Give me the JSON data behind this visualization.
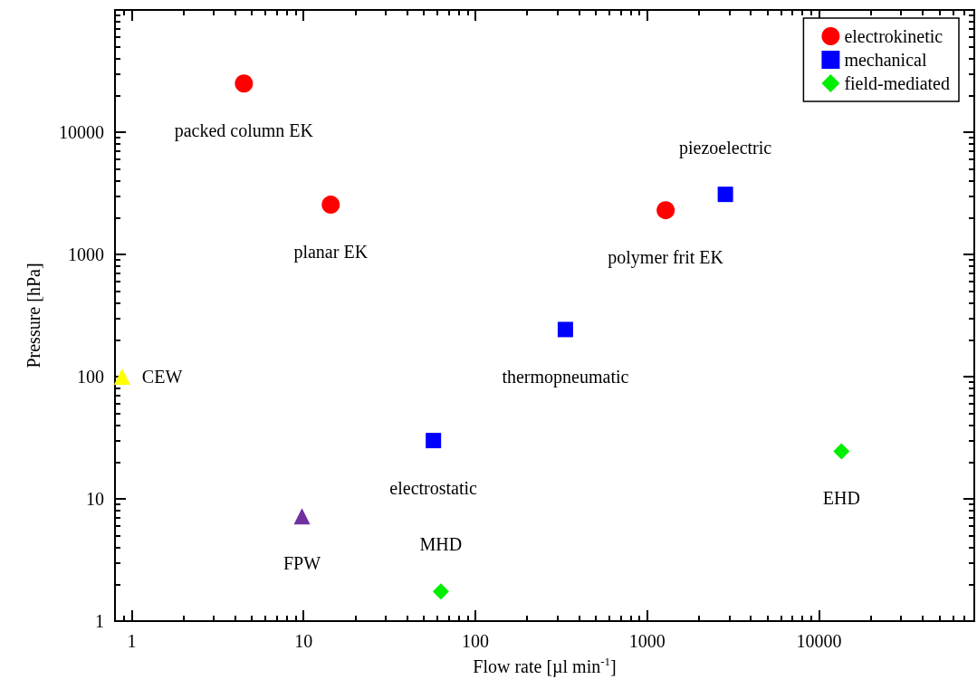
{
  "chart_data": {
    "type": "scatter",
    "xlabel": "Flow rate [µl min$^{-1}$]",
    "ylabel": "Pressure [hPa]",
    "log": "xy",
    "grid": false,
    "legend": "top right",
    "xlim": [
      0.8,
      80000
    ],
    "ylim": [
      1,
      100000
    ],
    "xticks": [
      {
        "value": 0.8,
        "label": null
      },
      {
        "value": 0.9,
        "label": null
      },
      1,
      {
        "value": 2,
        "label": null
      },
      {
        "value": 3,
        "label": null
      },
      {
        "value": 4,
        "label": null
      },
      {
        "value": 5,
        "label": null
      },
      {
        "value": 6,
        "label": null
      },
      {
        "value": 7,
        "label": null
      },
      {
        "value": 8,
        "label": null
      },
      {
        "value": 9,
        "label": null
      },
      10,
      {
        "value": 20,
        "label": null
      },
      {
        "value": 30,
        "label": null
      },
      {
        "value": 40,
        "label": null
      },
      {
        "value": 50,
        "label": null
      },
      {
        "value": 60,
        "label": null
      },
      {
        "value": 70,
        "label": null
      },
      {
        "value": 80,
        "label": null
      },
      {
        "value": 90,
        "label": null
      },
      100,
      {
        "value": 200,
        "label": null
      },
      {
        "value": 300,
        "label": null
      },
      {
        "value": 400,
        "label": null
      },
      {
        "value": 500,
        "label": null
      },
      {
        "value": 600,
        "label": null
      },
      {
        "value": 700,
        "label": null
      },
      {
        "value": 800,
        "label": null
      },
      {
        "value": 900,
        "label": null
      },
      1000,
      {
        "value": 2000,
        "label": null
      },
      {
        "value": 3000,
        "label": null
      },
      {
        "value": 4000,
        "label": null
      },
      {
        "value": 5000,
        "label": null
      },
      {
        "value": 6000,
        "label": null
      },
      {
        "value": 7000,
        "label": null
      },
      {
        "value": 8000,
        "label": null
      },
      {
        "value": 9000,
        "label": null
      },
      10000,
      {
        "value": 20000,
        "label": null
      },
      {
        "value": 30000,
        "label": null
      },
      {
        "value": 40000,
        "label": null
      },
      {
        "value": 50000,
        "label": null
      },
      {
        "value": 60000,
        "label": null
      },
      {
        "value": 70000,
        "label": null
      },
      {
        "value": 80000,
        "label": null
      }
    ],
    "yticks": [
      1,
      {
        "value": 2,
        "label": null
      },
      {
        "value": 3,
        "label": null
      },
      {
        "value": 4,
        "label": null
      },
      {
        "value": 5,
        "label": null
      },
      {
        "value": 6,
        "label": null
      },
      {
        "value": 7,
        "label": null
      },
      {
        "value": 8,
        "label": null
      },
      {
        "value": 9,
        "label": null
      },
      10,
      {
        "value": 20,
        "label": null
      },
      {
        "value": 30,
        "label": null
      },
      {
        "value": 40,
        "label": null
      },
      {
        "value": 50,
        "label": null
      },
      {
        "value": 60,
        "label": null
      },
      {
        "value": 70,
        "label": null
      },
      {
        "value": 80,
        "label": null
      },
      {
        "value": 90,
        "label": null
      },
      100,
      {
        "value": 200,
        "label": null
      },
      {
        "value": 300,
        "label": null
      },
      {
        "value": 400,
        "label": null
      },
      {
        "value": 500,
        "label": null
      },
      {
        "value": 600,
        "label": null
      },
      {
        "value": 700,
        "label": null
      },
      {
        "value": 800,
        "label": null
      },
      {
        "value": 900,
        "label": null
      },
      1000,
      {
        "value": 2000,
        "label": null
      },
      {
        "value": 3000,
        "label": null
      },
      {
        "value": 4000,
        "label": null
      },
      {
        "value": 5000,
        "label": null
      },
      {
        "value": 6000,
        "label": null
      },
      {
        "value": 7000,
        "label": null
      },
      {
        "value": 8000,
        "label": null
      },
      {
        "value": 9000,
        "label": null
      },
      10000,
      {
        "value": 20000,
        "label": null
      },
      {
        "value": 30000,
        "label": null
      },
      {
        "value": 40000,
        "label": null
      },
      {
        "value": 50000,
        "label": null
      },
      {
        "value": 60000,
        "label": null
      },
      {
        "value": 70000,
        "label": null
      },
      {
        "value": 80000,
        "label": null
      },
      {
        "value": 90000,
        "label": null
      },
      {
        "value": 100000,
        "label": null
      }
    ],
    "series": [
      {
        "name": "electrokinetic",
        "color": "#ff0000",
        "marker": "circle",
        "x": [
          4.5,
          14.4,
          1280
        ],
        "values": [
          25000,
          2550,
          2300
        ]
      },
      {
        "name": "mechanical",
        "color": "#0000ff",
        "marker": "square",
        "x": [
          2850,
          334,
          57
        ],
        "values": [
          3100,
          243,
          30
        ]
      },
      {
        "name": "field-mediated",
        "color": "#00ee00",
        "marker": "diamond",
        "x": [
          63,
          13500
        ],
        "values": [
          1.75,
          24.5
        ]
      },
      {
        "color": "#7030a0",
        "marker": "triangle",
        "x": [
          9.8
        ],
        "values": [
          7.2
        ]
      },
      {
        "color": "#ffff00",
        "marker": "triangle",
        "x": [
          0.88
        ],
        "values": [
          100
        ]
      }
    ],
    "annotations": [
      {
        "text": "packed column EK",
        "x": 4.5,
        "y": 25000
      },
      {
        "text": "planar EK",
        "x": 14.4,
        "y": 2550
      },
      {
        "text": "polymer frit EK",
        "x": 1280,
        "y": 2300
      },
      {
        "text": "piezoelectric",
        "x": 2850,
        "y": 3100
      },
      {
        "text": "thermopneumatic",
        "x": 334,
        "y": 243
      },
      {
        "text": "electrostatic",
        "x": 57,
        "y": 30
      },
      {
        "text": "MHD",
        "x": 63,
        "y": 1.75
      },
      {
        "text": "FPW",
        "x": 9.8,
        "y": 7.2
      },
      {
        "text": "EHD",
        "x": 13500,
        "y": 24.5
      },
      {
        "text": "CEW",
        "x": 0.88,
        "y": 100
      }
    ]
  }
}
